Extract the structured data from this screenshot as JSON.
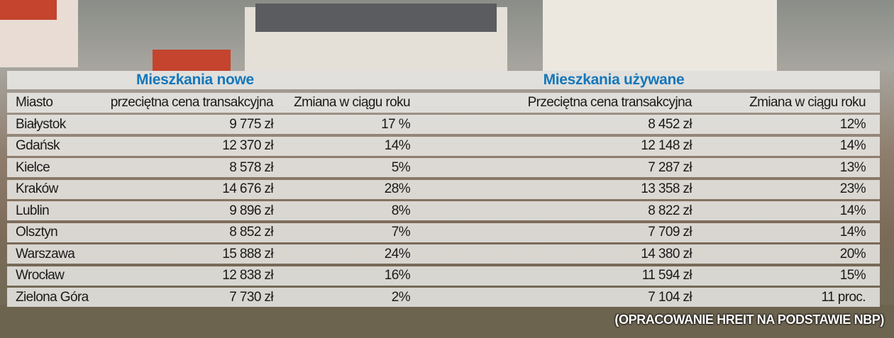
{
  "groups": [
    "Mieszkania nowe",
    "Mieszkania używane"
  ],
  "columns": [
    "Miasto",
    "przeciętna cena transakcyjna",
    "Zmiana w ciągu roku",
    "Przeciętna cena transakcyjna",
    "Zmiana w ciągu roku"
  ],
  "rows": [
    [
      "Białystok",
      "9 775 zł",
      "17 %",
      "8 452 zł",
      "12%"
    ],
    [
      "Gdańsk",
      "12 370 zł",
      "14%",
      "12 148 zł",
      "14%"
    ],
    [
      "Kielce",
      "8 578 zł",
      "5%",
      "7 287 zł",
      "13%"
    ],
    [
      "Kraków",
      "14 676 zł",
      "28%",
      "13 358 zł",
      "23%"
    ],
    [
      "Lublin",
      "9 896 zł",
      "8%",
      "8 822 zł",
      "14%"
    ],
    [
      "Olsztyn",
      "8 852 zł",
      "7%",
      "7 709 zł",
      "14%"
    ],
    [
      "Warszawa",
      "15 888 zł",
      "24%",
      "14 380 zł",
      "20%"
    ],
    [
      "Wrocław",
      "12 838 zł",
      "16%",
      "11 594 zł",
      "15%"
    ],
    [
      "Zielona Góra",
      "7 730 zł",
      "2%",
      "7 104 zł",
      "11 proc."
    ]
  ],
  "source": "(OPRACOWANIE HREIT NA PODSTAWIE NBP)"
}
